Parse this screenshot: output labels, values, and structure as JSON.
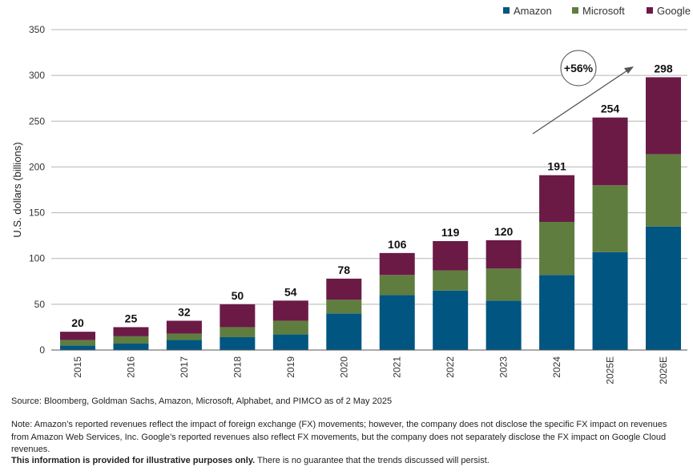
{
  "chart_data": {
    "type": "bar",
    "stacked": true,
    "categories": [
      "2015",
      "2016",
      "2017",
      "2018",
      "2019",
      "2020",
      "2021",
      "2022",
      "2023",
      "2024",
      "2025E",
      "2026E"
    ],
    "series": [
      {
        "name": "Amazon",
        "color": "#005581",
        "values": [
          5,
          7,
          11,
          14,
          17,
          40,
          60,
          65,
          54,
          82,
          107,
          135
        ]
      },
      {
        "name": "Microsoft",
        "color": "#5f7d3f",
        "values": [
          6,
          8,
          7,
          11,
          15,
          15,
          22,
          22,
          35,
          58,
          73,
          79
        ]
      },
      {
        "name": "Google",
        "color": "#6b1a46",
        "values": [
          9,
          10,
          14,
          25,
          22,
          23,
          24,
          32,
          31,
          51,
          74,
          84
        ]
      }
    ],
    "totals": [
      "20",
      "25",
      "32",
      "50",
      "54",
      "78",
      "106",
      "119",
      "120",
      "191",
      "254",
      "298"
    ],
    "ylabel": "U.S. dollars (billions)",
    "xlabel": "",
    "ylim": [
      0,
      350
    ],
    "yticks": [
      0,
      50,
      100,
      150,
      200,
      250,
      300,
      350
    ],
    "grid": true,
    "legend_position": "top-right",
    "annotation": {
      "text": "+56%",
      "shape": "circle-with-arrow"
    }
  },
  "footer": {
    "source": "Source: Bloomberg, Goldman Sachs, Amazon, Microsoft, Alphabet, and PIMCO as of 2 May 2025",
    "note": "Note: Amazon’s reported revenues reflect the impact of foreign exchange (FX) movements; however, the company does not disclose the specific FX impact on revenues from Amazon Web Services, Inc. Google’s reported revenues also reflect FX movements, but the company does not separately disclose the FX impact on Google Cloud revenues.",
    "disclaimer_bold": "This information is provided for illustrative purposes only.",
    "disclaimer_rest": " There is no guarantee that the trends discussed will persist."
  }
}
